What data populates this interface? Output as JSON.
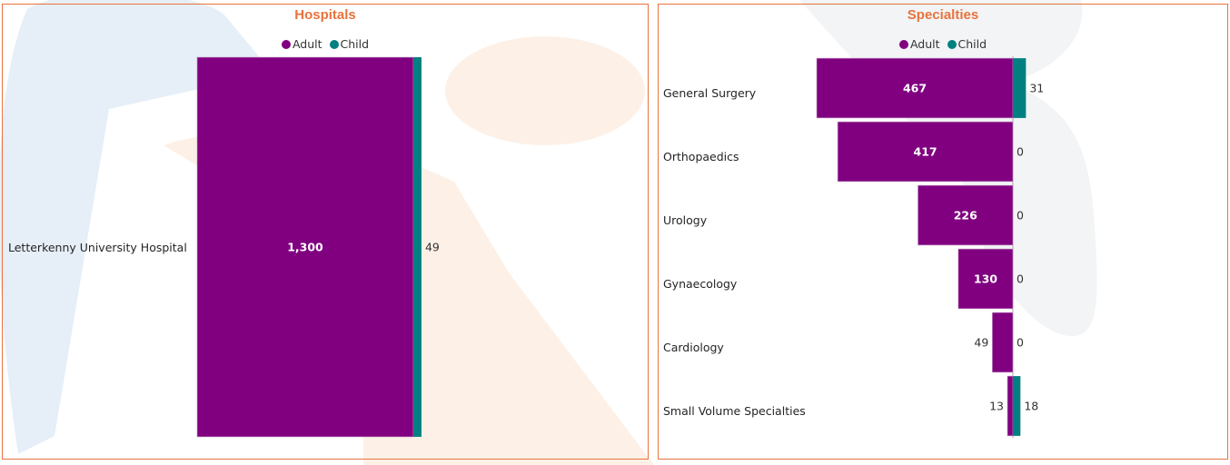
{
  "colors": {
    "adult": "#800080",
    "child": "#008080",
    "title": "#e8733d",
    "border": "#e8733d"
  },
  "chart_data": [
    {
      "type": "bar",
      "orientation": "horizontal",
      "stacked": "diverging",
      "title": "Hospitals",
      "legend": [
        "Adult",
        "Child"
      ],
      "legend_position": "top-center",
      "categories": [
        "Letterkenny University Hospital"
      ],
      "series": [
        {
          "name": "Adult",
          "values": [
            1300
          ],
          "labels": [
            "1,300"
          ]
        },
        {
          "name": "Child",
          "values": [
            49
          ],
          "labels": [
            "49"
          ]
        }
      ]
    },
    {
      "type": "bar",
      "orientation": "horizontal",
      "stacked": "diverging",
      "title": "Specialties",
      "legend": [
        "Adult",
        "Child"
      ],
      "legend_position": "top-center",
      "categories": [
        "General Surgery",
        "Orthopaedics",
        "Urology",
        "Gynaecology",
        "Cardiology",
        "Small Volume Specialties"
      ],
      "series": [
        {
          "name": "Adult",
          "values": [
            467,
            417,
            226,
            130,
            49,
            13
          ],
          "labels": [
            "467",
            "417",
            "226",
            "130",
            "49",
            "13"
          ]
        },
        {
          "name": "Child",
          "values": [
            31,
            0,
            0,
            0,
            0,
            18
          ],
          "labels": [
            "31",
            "0",
            "0",
            "0",
            "0",
            "18"
          ]
        }
      ]
    }
  ]
}
